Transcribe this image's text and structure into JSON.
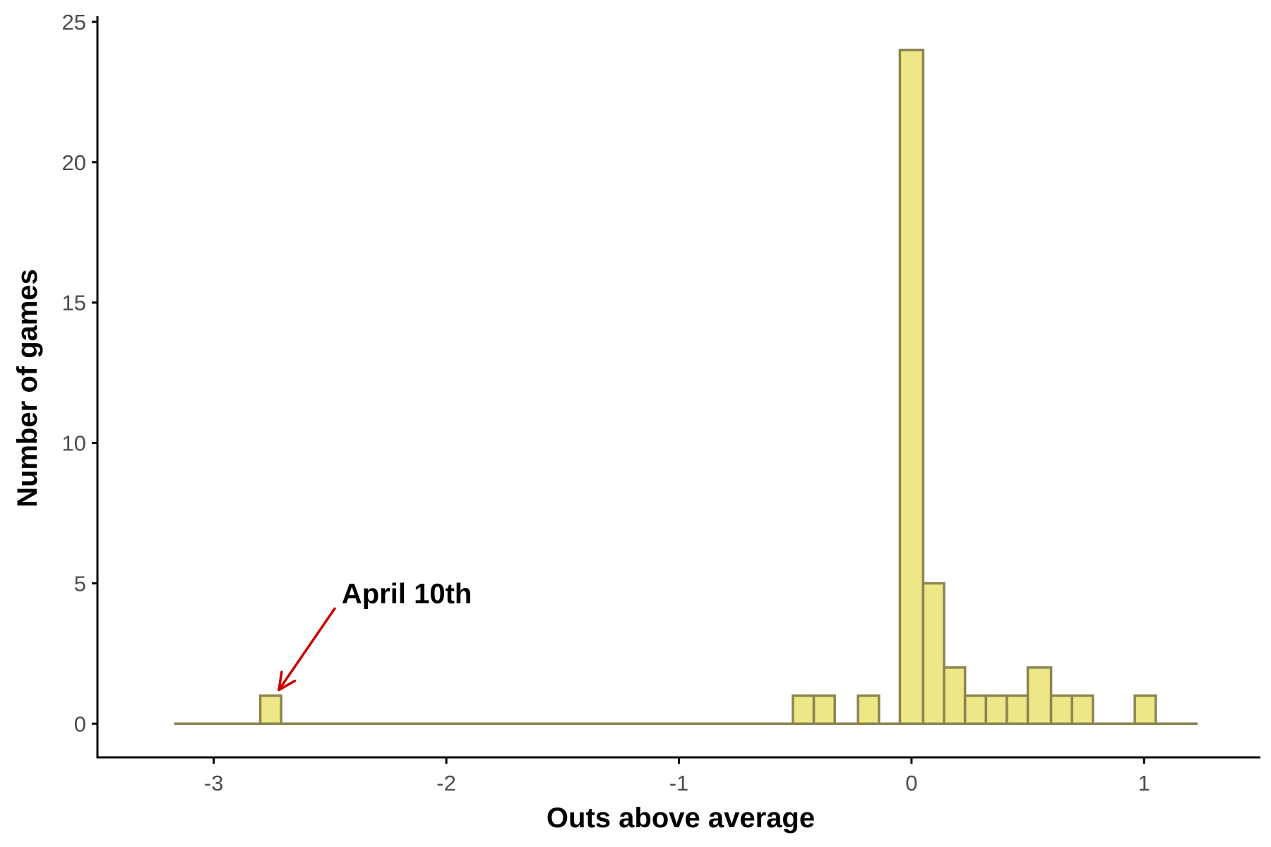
{
  "chart_data": {
    "type": "bar",
    "subtype": "histogram",
    "title": "",
    "xlabel": "Outs above average",
    "ylabel": "Number of games",
    "xlim": [
      -3.5,
      1.5
    ],
    "ylim": [
      -1.2,
      25.2
    ],
    "x_range_drawn": [
      -3.17,
      1.23
    ],
    "bin_width": 0.0917,
    "x_ticks": [
      -3,
      -2,
      -1,
      0,
      1
    ],
    "x_tick_labels": [
      "-3",
      "-2",
      "-1",
      "0",
      "1"
    ],
    "y_ticks": [
      0,
      5,
      10,
      15,
      20,
      25
    ],
    "y_tick_labels": [
      "0",
      "5",
      "10",
      "15",
      "20",
      "25"
    ],
    "grid": false,
    "colors": {
      "fill": "#ede787",
      "outline": "#8b8550",
      "annotation": "#cc0000",
      "axis": "#000000"
    },
    "bins": [
      {
        "x_start": -2.8,
        "x_end": -2.71,
        "count": 1
      },
      {
        "x_start": -0.51,
        "x_end": -0.42,
        "count": 1
      },
      {
        "x_start": -0.42,
        "x_end": -0.33,
        "count": 1
      },
      {
        "x_start": -0.23,
        "x_end": -0.14,
        "count": 1
      },
      {
        "x_start": -0.05,
        "x_end": 0.05,
        "count": 24
      },
      {
        "x_start": 0.05,
        "x_end": 0.14,
        "count": 5
      },
      {
        "x_start": 0.14,
        "x_end": 0.23,
        "count": 2
      },
      {
        "x_start": 0.23,
        "x_end": 0.32,
        "count": 1
      },
      {
        "x_start": 0.32,
        "x_end": 0.41,
        "count": 1
      },
      {
        "x_start": 0.41,
        "x_end": 0.5,
        "count": 1
      },
      {
        "x_start": 0.5,
        "x_end": 0.6,
        "count": 2
      },
      {
        "x_start": 0.6,
        "x_end": 0.69,
        "count": 1
      },
      {
        "x_start": 0.69,
        "x_end": 0.78,
        "count": 1
      },
      {
        "x_start": 0.96,
        "x_end": 1.05,
        "count": 1
      }
    ],
    "annotation": {
      "text": "April 10th",
      "arrow_from": {
        "x": -2.48,
        "y": 4.1
      },
      "arrow_to": {
        "x": -2.72,
        "y": 1.2
      },
      "text_anchor": {
        "x": -2.45,
        "y": 4.3
      }
    }
  }
}
